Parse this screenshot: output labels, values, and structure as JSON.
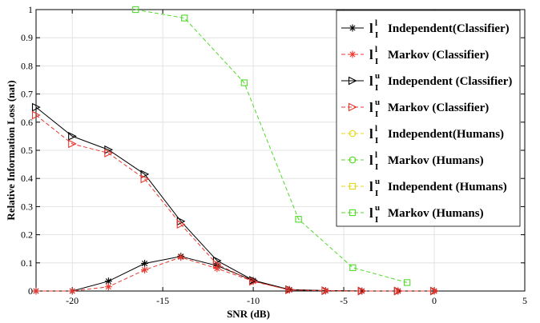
{
  "chart_data": {
    "type": "line",
    "title": "",
    "xlabel": "SNR (dB)",
    "ylabel": "Relative Information Loss (nat)",
    "xlim": [
      -22,
      5
    ],
    "ylim": [
      0,
      1
    ],
    "xticks": [
      -20,
      -15,
      -10,
      -5,
      0,
      5
    ],
    "yticks": [
      0,
      0.1,
      0.2,
      0.3,
      0.4,
      0.5,
      0.6,
      0.7,
      0.8,
      0.9,
      1
    ],
    "xtick_labels": [
      "-20",
      "-15",
      "-10",
      "-5",
      "0",
      "5"
    ],
    "ytick_labels": [
      "0",
      "0.1",
      "0.2",
      "0.3",
      "0.4",
      "0.5",
      "0.6",
      "0.7",
      "0.8",
      "0.9",
      "1"
    ],
    "grid": true,
    "legend_position": "top-right",
    "series": [
      {
        "name": "Independent(Classifier)",
        "symbol": "l",
        "sup": "l",
        "sub": "I",
        "color": "#000000",
        "dash": "solid",
        "marker": "star",
        "x": [
          -22,
          -20,
          -18,
          -16,
          -14,
          -12,
          -10,
          -8,
          -6,
          -4,
          -2,
          0
        ],
        "y": [
          0,
          0,
          0.035,
          0.098,
          0.123,
          0.09,
          0.037,
          0.005,
          0.001,
          0,
          0,
          0
        ]
      },
      {
        "name": "Markov (Classifier)",
        "symbol": "l",
        "sup": "l",
        "sub": "I",
        "color": "#e8372f",
        "dash": "dashed",
        "marker": "star",
        "x": [
          -22,
          -20,
          -18,
          -16,
          -14,
          -12,
          -10,
          -8,
          -6,
          -4,
          -2,
          0
        ],
        "y": [
          0,
          0,
          0.015,
          0.075,
          0.12,
          0.08,
          0.035,
          0.004,
          0.001,
          0,
          0,
          0
        ]
      },
      {
        "name": "Independent (Classifier)",
        "symbol": "l",
        "sup": "u",
        "sub": "I",
        "color": "#000000",
        "dash": "solid",
        "marker": "triangle-right",
        "x": [
          -22,
          -20,
          -18,
          -16,
          -14,
          -12,
          -10,
          -8,
          -6,
          -4,
          -2,
          0
        ],
        "y": [
          0.653,
          0.55,
          0.502,
          0.415,
          0.248,
          0.108,
          0.038,
          0.005,
          0.001,
          0,
          0,
          0
        ]
      },
      {
        "name": "Markov (Classifier)",
        "symbol": "l",
        "sup": "u",
        "sub": "I",
        "color": "#e8372f",
        "dash": "dashed",
        "marker": "triangle-right",
        "x": [
          -22,
          -20,
          -18,
          -16,
          -14,
          -12,
          -10,
          -8,
          -6,
          -4,
          -2,
          0
        ],
        "y": [
          0.625,
          0.523,
          0.49,
          0.398,
          0.237,
          0.095,
          0.034,
          0.004,
          0.001,
          0,
          0,
          0
        ]
      },
      {
        "name": "Independent(Humans)",
        "symbol": "l",
        "sup": "l",
        "sub": "I",
        "color": "#e6d81c",
        "dash": "dashed",
        "marker": "circle",
        "x": [],
        "y": []
      },
      {
        "name": "Markov (Humans)",
        "symbol": "l",
        "sup": "l",
        "sub": "I",
        "color": "#52d92a",
        "dash": "dashed",
        "marker": "circle",
        "x": [],
        "y": []
      },
      {
        "name": "Independent (Humans)",
        "symbol": "l",
        "sup": "u",
        "sub": "I",
        "color": "#e6d81c",
        "dash": "dashed",
        "marker": "square",
        "x": [],
        "y": []
      },
      {
        "name": "Markov (Humans)",
        "symbol": "l",
        "sup": "u",
        "sub": "I",
        "color": "#52d92a",
        "dash": "dashed",
        "marker": "square",
        "x": [
          -16.5,
          -13.8,
          -10.5,
          -7.5,
          -4.5,
          -1.5
        ],
        "y": [
          1.0,
          0.97,
          0.74,
          0.255,
          0.083,
          0.03
        ]
      }
    ]
  }
}
